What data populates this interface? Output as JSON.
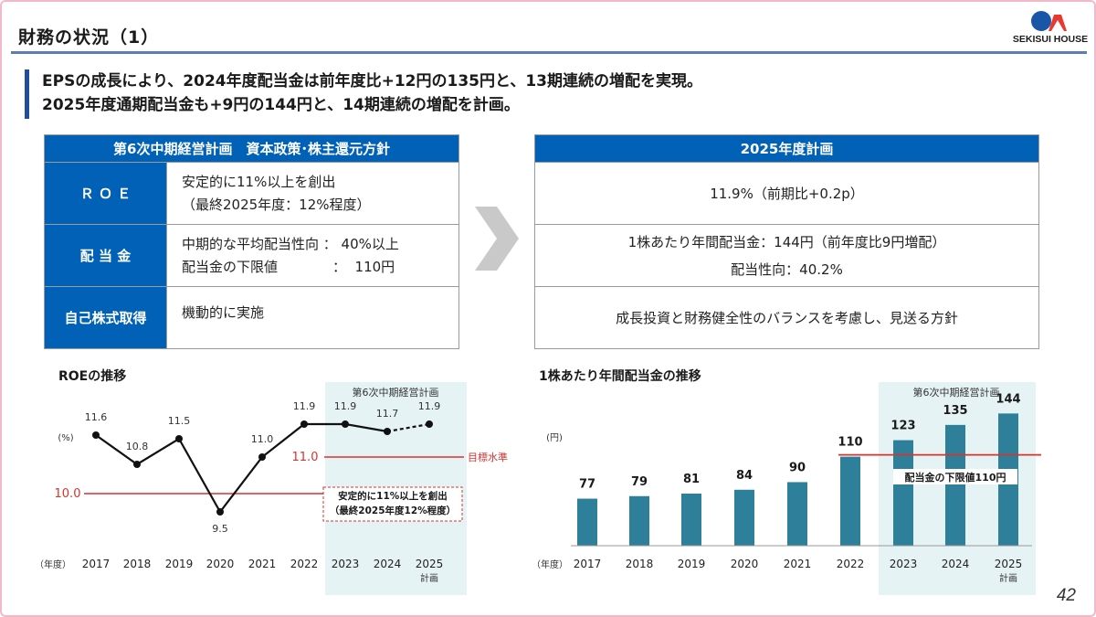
{
  "page": {
    "title": "財務の状況（1）",
    "number": "42"
  },
  "logo": {
    "text": "SEKISUI HOUSE",
    "colors": {
      "red": "#e8382f",
      "blue": "#1a56a8"
    }
  },
  "headline": {
    "line1": "EPSの成長により、2024年度配当金は前年度比+12円の135円と、13期連続の増配を実現。",
    "line2": "2025年度通期配当金も+9円の144円と、14期連続の増配を計画。"
  },
  "policy_table": {
    "header": "第6次中期経営計画　資本政策･株主還元方針",
    "rows": [
      {
        "label": "Ｒ Ｏ Ｅ",
        "lines": [
          "安定的に11%以上を創出",
          "（最終2025年度：12%程度）"
        ]
      },
      {
        "label": "配 当 金",
        "lines": [
          "中期的な平均配当性向 ：  40%以上",
          "配当金の下限値　　　　：  110円"
        ]
      },
      {
        "label": "自己株式取得",
        "lines": [
          "機動的に実施"
        ]
      }
    ]
  },
  "plan_table": {
    "header": "2025年度計画",
    "rows": [
      {
        "lines": [
          "11.9%（前期比+0.2p）"
        ]
      },
      {
        "lines": [
          "1株あたり年間配当金：144円（前年度比9円増配）",
          "配当性向：40.2%"
        ]
      },
      {
        "lines": [
          "成長投資と財務健全性のバランスを考慮し、見送る方針"
        ]
      }
    ]
  },
  "colors": {
    "accent": "#0061b6",
    "bar": "#2e7f99",
    "target_line": "#d7332f",
    "plan_band": "#e6f3f5"
  },
  "roe_chart": {
    "section_title": "ROEの推移",
    "plan_band_label": "第6次中期経営計画",
    "unit_label": "(%)",
    "year_unit_label": "（年度）",
    "target_label": "目標水準",
    "ref_line_label": "10.0",
    "target_value_label": "11.0",
    "note_lines": [
      "安定的に11%以上を創出",
      "（最終2025年度12%程度）"
    ]
  },
  "div_chart": {
    "section_title": "1株あたり年間配当金の推移",
    "plan_band_label": "第6次中期経営計画",
    "unit_label": "(円)",
    "year_unit_label": "（年度）",
    "floor_label": "配当金の下限値110円"
  },
  "chart_data": [
    {
      "type": "line",
      "title": "ROEの推移",
      "categories": [
        "2017",
        "2018",
        "2019",
        "2020",
        "2021",
        "2022",
        "2023",
        "2024",
        "2025"
      ],
      "category_sublabels": [
        "",
        "",
        "",
        "",
        "",
        "",
        "",
        "",
        "計画"
      ],
      "values": [
        11.6,
        10.8,
        11.5,
        9.5,
        11.0,
        11.9,
        11.9,
        11.7,
        11.9
      ],
      "value_labels": [
        "11.6",
        "10.8",
        "11.5",
        "9.5",
        "11.0",
        "11.9",
        "11.9",
        "11.7",
        "11.9"
      ],
      "dashed_from_index": 7,
      "reference_lines": [
        {
          "value": 10.0,
          "label": "10.0"
        },
        {
          "value": 11.0,
          "label": "11.0",
          "note": "目標水準"
        }
      ],
      "ylim": [
        8.5,
        12.5
      ],
      "ylabel": "(%)",
      "xlabel": "（年度）",
      "highlight_range": [
        "2023",
        "2025"
      ]
    },
    {
      "type": "bar",
      "title": "1株あたり年間配当金の推移",
      "categories": [
        "2017",
        "2018",
        "2019",
        "2020",
        "2021",
        "2022",
        "2023",
        "2024",
        "2025"
      ],
      "category_sublabels": [
        "",
        "",
        "",
        "",
        "",
        "",
        "",
        "",
        "計画"
      ],
      "values": [
        77,
        79,
        81,
        84,
        90,
        110,
        123,
        135,
        144
      ],
      "value_labels": [
        "77",
        "79",
        "81",
        "84",
        "90",
        "110",
        "123",
        "135",
        "144"
      ],
      "reference_lines": [
        {
          "value": 110,
          "label": "配当金の下限値110円"
        }
      ],
      "ylim": [
        40,
        150
      ],
      "ylabel": "(円)",
      "xlabel": "（年度）",
      "highlight_range": [
        "2023",
        "2025"
      ]
    }
  ]
}
